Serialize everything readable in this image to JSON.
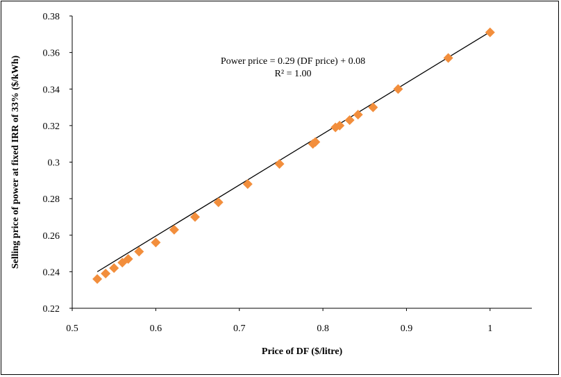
{
  "chart_data": {
    "type": "scatter",
    "xlabel": "Price of DF ($/litre)",
    "ylabel": "Selling price of power  at fixed IRR of 33% ($/kWh)",
    "xlim": [
      0.5,
      1.05
    ],
    "ylim": [
      0.22,
      0.38
    ],
    "xticks": [
      "0.5",
      "0.6",
      "0.7",
      "0.8",
      "0.9",
      "1"
    ],
    "yticks": [
      "0.22",
      "0.24",
      "0.26",
      "0.28",
      "0.3",
      "0.32",
      "0.34",
      "0.36",
      "0.38"
    ],
    "x": [
      0.53,
      0.54,
      0.55,
      0.56,
      0.567,
      0.58,
      0.6,
      0.622,
      0.647,
      0.675,
      0.71,
      0.748,
      0.788,
      0.791,
      0.815,
      0.82,
      0.832,
      0.842,
      0.86,
      0.89,
      0.95,
      1.0
    ],
    "y": [
      0.236,
      0.239,
      0.242,
      0.245,
      0.247,
      0.251,
      0.256,
      0.263,
      0.27,
      0.278,
      0.288,
      0.299,
      0.31,
      0.311,
      0.319,
      0.32,
      0.323,
      0.326,
      0.33,
      0.34,
      0.357,
      0.371
    ],
    "marker_color": "#F28E3C",
    "trendline": {
      "slope": 0.29,
      "intercept": 0.08,
      "x_range": [
        0.53,
        1.0
      ],
      "color": "#000000"
    },
    "annotation": {
      "equation": "Power price = 0.29 (DF price) + 0.08",
      "r_squared": "R² = 1.00"
    },
    "grid": false,
    "legend": "none"
  }
}
